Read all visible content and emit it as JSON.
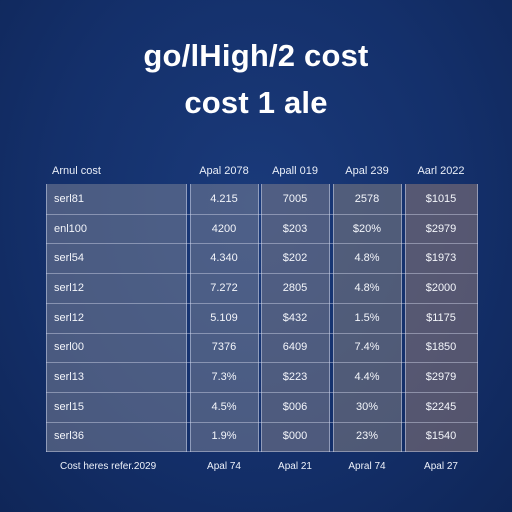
{
  "chart_data": {
    "type": "table",
    "title": "go/lHigh/2 cost",
    "subtitle": "cost 1 ale",
    "columns": [
      "Arnul cost",
      "Apal 2078",
      "Apall 019",
      "Apal 239",
      "Aarl 2022"
    ],
    "rows": [
      [
        "serl81",
        "4.215",
        "7005",
        "2578",
        "$1015"
      ],
      [
        "enl100",
        "4200",
        "$203",
        "$20%",
        "$2979"
      ],
      [
        "serl54",
        "4.340",
        "$202",
        "4.8%",
        "$1973"
      ],
      [
        "serl12",
        "7.272",
        "2805",
        "4.8%",
        "$2000"
      ],
      [
        "serl12",
        "5.109",
        "$432",
        "1.5%",
        "$1175"
      ],
      [
        "serl00",
        "7376",
        "6409",
        "7.4%",
        "$1850"
      ],
      [
        "serl13",
        "7.3%",
        "$223",
        "4.4%",
        "$2979"
      ],
      [
        "serl15",
        "4.5%",
        "$006",
        "30%",
        "$2245"
      ],
      [
        "serl36",
        "1.9%",
        "$000",
        "23%",
        "$1540"
      ]
    ],
    "footer": [
      "Cost heres refer.2029",
      "Apal 74",
      "Apal 21",
      "Apral 74",
      "Apal 27"
    ],
    "colors": {
      "background": "#14306b",
      "label_column": "#6f7892",
      "value_column_tint": "#8a7a86",
      "text": "#ffffff"
    }
  }
}
